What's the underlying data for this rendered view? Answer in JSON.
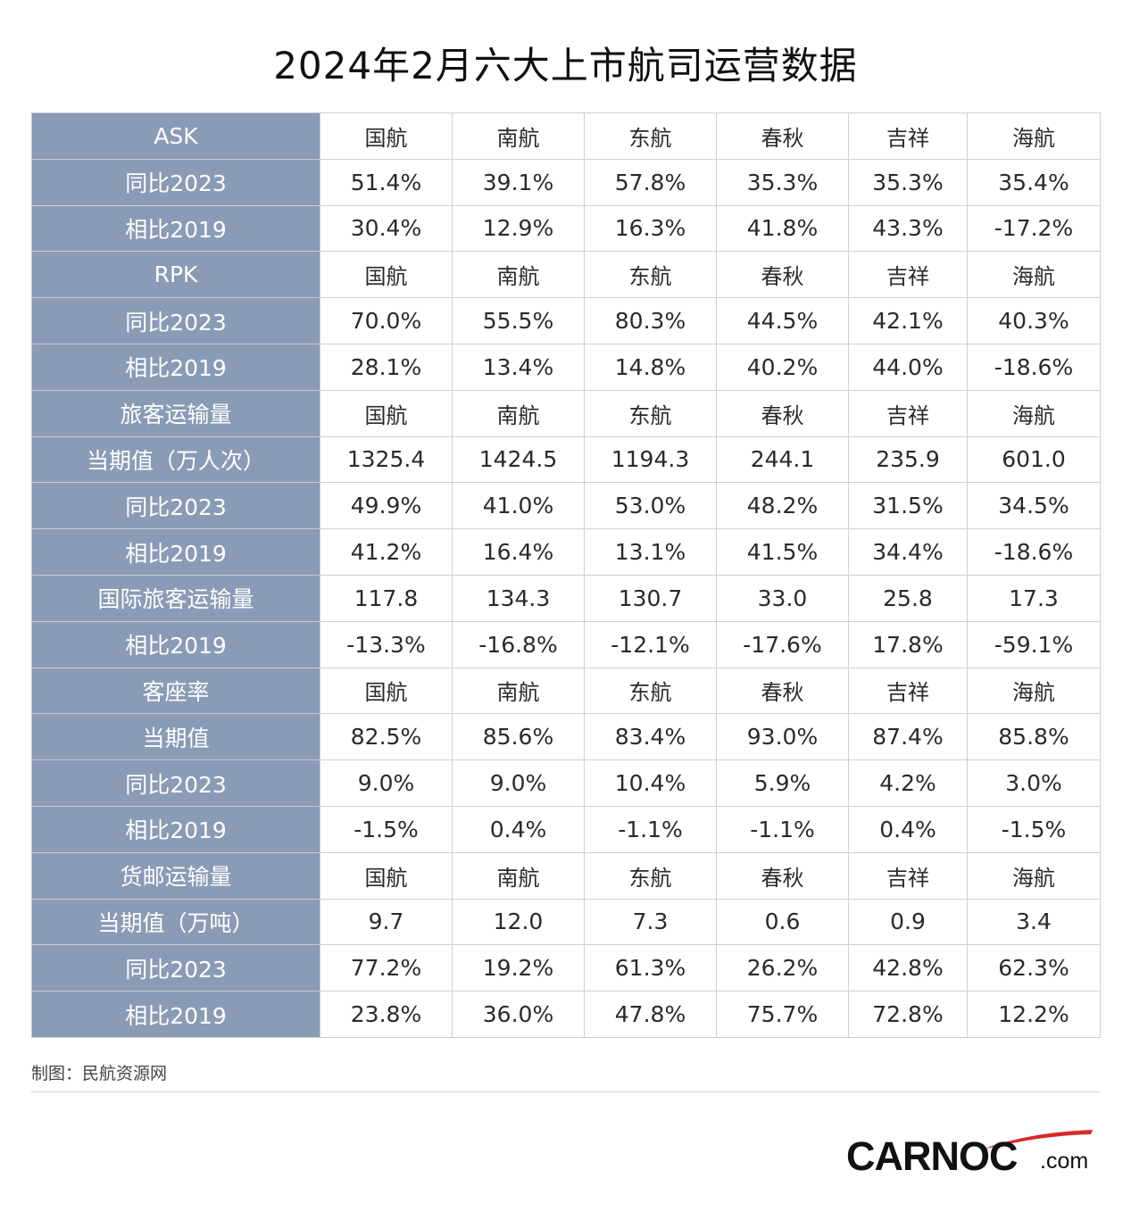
{
  "title": "2024年2月六大上市航司运营数据",
  "airlines": [
    "国航",
    "南航",
    "东航",
    "春秋",
    "吉祥",
    "海航"
  ],
  "rows": [
    {
      "label": "ASK",
      "values": [
        "国航",
        "南航",
        "东航",
        "春秋",
        "吉祥",
        "海航"
      ]
    },
    {
      "label": "同比2023",
      "values": [
        "51.4%",
        "39.1%",
        "57.8%",
        "35.3%",
        "35.3%",
        "35.4%"
      ]
    },
    {
      "label": "相比2019",
      "values": [
        "30.4%",
        "12.9%",
        "16.3%",
        "41.8%",
        "43.3%",
        "-17.2%"
      ]
    },
    {
      "label": "RPK",
      "values": [
        "国航",
        "南航",
        "东航",
        "春秋",
        "吉祥",
        "海航"
      ]
    },
    {
      "label": "同比2023",
      "values": [
        "70.0%",
        "55.5%",
        "80.3%",
        "44.5%",
        "42.1%",
        "40.3%"
      ]
    },
    {
      "label": "相比2019",
      "values": [
        "28.1%",
        "13.4%",
        "14.8%",
        "40.2%",
        "44.0%",
        "-18.6%"
      ]
    },
    {
      "label": "旅客运输量",
      "values": [
        "国航",
        "南航",
        "东航",
        "春秋",
        "吉祥",
        "海航"
      ]
    },
    {
      "label": "当期值（万人次）",
      "values": [
        "1325.4",
        "1424.5",
        "1194.3",
        "244.1",
        "235.9",
        "601.0"
      ]
    },
    {
      "label": "同比2023",
      "values": [
        "49.9%",
        "41.0%",
        "53.0%",
        "48.2%",
        "31.5%",
        "34.5%"
      ]
    },
    {
      "label": "相比2019",
      "values": [
        "41.2%",
        "16.4%",
        "13.1%",
        "41.5%",
        "34.4%",
        "-18.6%"
      ]
    },
    {
      "label": "国际旅客运输量",
      "values": [
        "117.8",
        "134.3",
        "130.7",
        "33.0",
        "25.8",
        "17.3"
      ]
    },
    {
      "label": "相比2019",
      "values": [
        "-13.3%",
        "-16.8%",
        "-12.1%",
        "-17.6%",
        "17.8%",
        "-59.1%"
      ]
    },
    {
      "label": "客座率",
      "values": [
        "国航",
        "南航",
        "东航",
        "春秋",
        "吉祥",
        "海航"
      ]
    },
    {
      "label": "当期值",
      "values": [
        "82.5%",
        "85.6%",
        "83.4%",
        "93.0%",
        "87.4%",
        "85.8%"
      ]
    },
    {
      "label": "同比2023",
      "values": [
        "9.0%",
        "9.0%",
        "10.4%",
        "5.9%",
        "4.2%",
        "3.0%"
      ]
    },
    {
      "label": "相比2019",
      "values": [
        "-1.5%",
        "0.4%",
        "-1.1%",
        "-1.1%",
        "0.4%",
        "-1.5%"
      ]
    },
    {
      "label": "货邮运输量",
      "values": [
        "国航",
        "南航",
        "东航",
        "春秋",
        "吉祥",
        "海航"
      ]
    },
    {
      "label": "当期值（万吨）",
      "values": [
        "9.7",
        "12.0",
        "7.3",
        "0.6",
        "0.9",
        "3.4"
      ]
    },
    {
      "label": "同比2023",
      "values": [
        "77.2%",
        "19.2%",
        "61.3%",
        "26.2%",
        "42.8%",
        "62.3%"
      ]
    },
    {
      "label": "相比2019",
      "values": [
        "23.8%",
        "36.0%",
        "47.8%",
        "75.7%",
        "72.8%",
        "12.2%"
      ]
    }
  ],
  "credit": "制图：民航资源网",
  "logo": {
    "main": "CARNOC",
    "suffix": ".com",
    "swoosh_color": "#d62b2b"
  },
  "colors": {
    "label_bg": "#8a9bb5",
    "border": "#cfcfcf"
  }
}
